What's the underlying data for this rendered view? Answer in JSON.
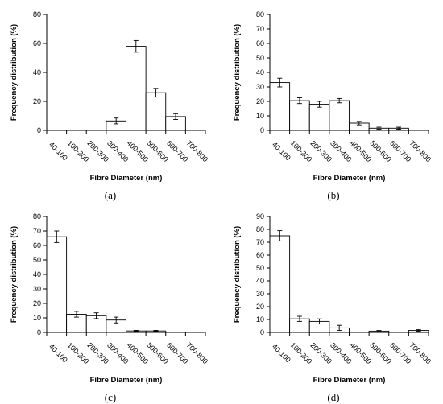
{
  "chart_data": [
    {
      "type": "bar",
      "panel_label": "(a)",
      "categories": [
        "40-100",
        "100-200",
        "200-300",
        "300-400",
        "400-500",
        "500-600",
        "600-700",
        "700-800"
      ],
      "values": [
        0,
        0,
        0,
        6.5,
        58,
        26,
        9.5,
        0
      ],
      "errors": [
        0,
        0,
        0,
        2,
        4,
        3,
        2,
        0
      ],
      "xlabel": "Fibre Diameter (nm)",
      "ylabel": "Frequency distribution (%)",
      "ylim": [
        0,
        80
      ],
      "yticks": [
        0,
        20,
        40,
        60,
        80
      ],
      "grid": false
    },
    {
      "type": "bar",
      "panel_label": "(b)",
      "categories": [
        "40-100",
        "100-200",
        "200-300",
        "300-400",
        "400-500",
        "500-600",
        "600-700",
        "700-800"
      ],
      "values": [
        33,
        20.5,
        18,
        20.5,
        5,
        1.5,
        1.5,
        0
      ],
      "errors": [
        3,
        2,
        2,
        1.5,
        1.2,
        0.7,
        0.7,
        0
      ],
      "xlabel": "Fibre Diameter (nm)",
      "ylabel": "Frequency distribution (%)",
      "ylim": [
        0,
        80
      ],
      "yticks": [
        0,
        10,
        20,
        30,
        40,
        50,
        60,
        70,
        80
      ],
      "grid": false
    },
    {
      "type": "bar",
      "panel_label": "(c)",
      "categories": [
        "40-100",
        "100-200",
        "200-300",
        "300-400",
        "400-500",
        "500-600",
        "600-700",
        "700-800"
      ],
      "values": [
        66,
        12.5,
        11.5,
        8.5,
        1,
        1,
        0,
        0
      ],
      "errors": [
        4,
        2,
        2,
        2,
        0.4,
        0.4,
        0,
        0
      ],
      "xlabel": "Fibre Diameter (nm)",
      "ylabel": "Frequency distribution (%)",
      "ylim": [
        0,
        80
      ],
      "yticks": [
        0,
        10,
        20,
        30,
        40,
        50,
        60,
        70,
        80
      ],
      "grid": false
    },
    {
      "type": "bar",
      "panel_label": "(d)",
      "categories": [
        "40-100",
        "100-200",
        "200-300",
        "300-400",
        "400-500",
        "500-600",
        "600-700",
        "700-800"
      ],
      "values": [
        75,
        10.5,
        8.5,
        3.5,
        0,
        1,
        0,
        1.5
      ],
      "errors": [
        4,
        2,
        2,
        2,
        0,
        0.5,
        0,
        0.6
      ],
      "xlabel": "Fibre Diameter (nm)",
      "ylabel": "Frequency distribution (%)",
      "ylim": [
        0,
        90
      ],
      "yticks": [
        0,
        10,
        20,
        30,
        40,
        50,
        60,
        70,
        80,
        90
      ],
      "grid": false
    }
  ]
}
